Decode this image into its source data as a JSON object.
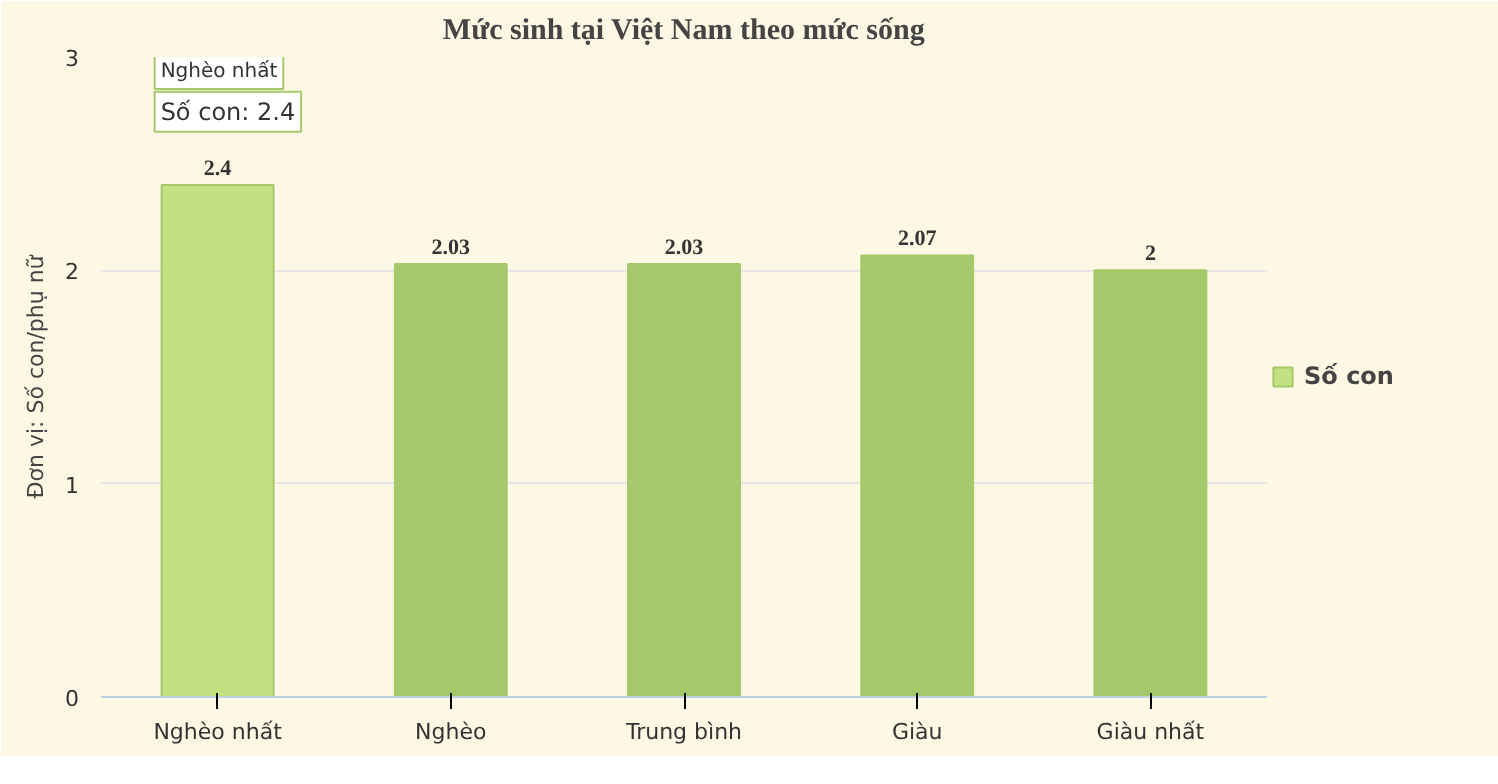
{
  "chart_data": {
    "type": "bar",
    "title": "Mức sinh tại Việt Nam theo mức sống",
    "ylabel": "Đơn vị: Số con/phụ nữ",
    "categories": [
      "Nghèo nhất",
      "Nghèo",
      "Trung bình",
      "Giàu",
      "Giàu nhất"
    ],
    "series": [
      {
        "name": "Số con",
        "color": "#a5c96a",
        "colors": [
          "#c2e282",
          "#a5c96a",
          "#a5c96a",
          "#a5c96a",
          "#a5c96a"
        ],
        "values": [
          2.4,
          2.03,
          2.03,
          2.07,
          2
        ]
      }
    ],
    "ylim": [
      0,
      3
    ],
    "yticks": [
      0,
      1,
      2,
      3
    ],
    "grid": "y",
    "legend": "right",
    "data_labels": true,
    "annotations": [
      "Nghèo nhất",
      "Số con: 2.4"
    ]
  }
}
